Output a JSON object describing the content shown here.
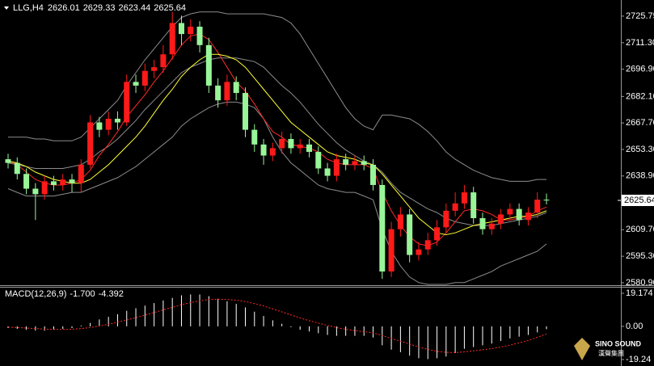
{
  "chart_data": [
    {
      "type": "candlestick",
      "symbol": "LLG,H4",
      "up_color": "#ff1a1a",
      "down_color": "#98f598",
      "open": [
        2648,
        2646,
        2640,
        2632,
        2629,
        2636,
        2634,
        2637,
        2635,
        2645,
        2668,
        2664,
        2670,
        2668,
        2690,
        2688,
        2696,
        2698,
        2705,
        2722,
        2716,
        2720,
        2710,
        2688,
        2680,
        2690,
        2684,
        2664,
        2656,
        2650,
        2654,
        2659,
        2654,
        2656,
        2652,
        2643,
        2639,
        2648,
        2645,
        2647,
        2645,
        2634,
        2587,
        2610,
        2618,
        2596,
        2599,
        2604,
        2611,
        2620,
        2624,
        2630,
        2616,
        2610,
        2613,
        2618,
        2621,
        2615,
        2619,
        2626.01
      ],
      "high": [
        2651,
        2649,
        2643,
        2635,
        2639,
        2639,
        2640,
        2640,
        2648,
        2672,
        2671,
        2674,
        2674,
        2694,
        2694,
        2700,
        2702,
        2710,
        2728,
        2726,
        2724,
        2723,
        2714,
        2692,
        2694,
        2693,
        2687,
        2667,
        2659,
        2657,
        2663,
        2662,
        2659,
        2659,
        2655,
        2646,
        2651,
        2651,
        2650,
        2650,
        2648,
        2637,
        2614,
        2622,
        2621,
        2603,
        2608,
        2615,
        2624,
        2630,
        2634,
        2633,
        2619,
        2616,
        2621,
        2624,
        2624,
        2622,
        2630,
        2629.33
      ],
      "low": [
        2643,
        2637,
        2629,
        2615,
        2626,
        2631,
        2631,
        2630,
        2630,
        2643,
        2660,
        2661,
        2664,
        2666,
        2684,
        2685,
        2692,
        2695,
        2702,
        2710,
        2712,
        2706,
        2684,
        2676,
        2677,
        2680,
        2660,
        2652,
        2645,
        2647,
        2651,
        2651,
        2651,
        2649,
        2640,
        2636,
        2636,
        2642,
        2642,
        2642,
        2631,
        2583,
        2584,
        2606,
        2592,
        2593,
        2596,
        2601,
        2608,
        2617,
        2621,
        2613,
        2607,
        2607,
        2610,
        2615,
        2612,
        2612,
        2616,
        2623.44
      ],
      "close": [
        2646,
        2640,
        2632,
        2629,
        2636,
        2634,
        2637,
        2635,
        2645,
        2668,
        2664,
        2670,
        2668,
        2690,
        2688,
        2696,
        2698,
        2705,
        2722,
        2716,
        2720,
        2710,
        2688,
        2680,
        2690,
        2684,
        2664,
        2656,
        2650,
        2654,
        2659,
        2654,
        2656,
        2652,
        2643,
        2639,
        2648,
        2645,
        2647,
        2645,
        2634,
        2587,
        2610,
        2618,
        2596,
        2599,
        2604,
        2611,
        2620,
        2624,
        2630,
        2616,
        2610,
        2613,
        2618,
        2621,
        2615,
        2619,
        2626.01,
        2625.64
      ],
      "lines": [
        {
          "color": "#8c8c8c",
          "values": [
            2660,
            2660,
            2660,
            2659,
            2659,
            2658,
            2658,
            2658,
            2660,
            2665,
            2670,
            2675,
            2680,
            2688,
            2695,
            2702,
            2708,
            2714,
            2720,
            2725,
            2727,
            2728,
            2728,
            2728,
            2727,
            2727,
            2727,
            2727,
            2727,
            2726,
            2725,
            2722,
            2716,
            2708,
            2700,
            2692,
            2684,
            2676,
            2670,
            2666,
            2664,
            2672,
            2672,
            2671,
            2670,
            2667,
            2663,
            2658,
            2652,
            2648,
            2645,
            2642,
            2640,
            2638,
            2637,
            2636,
            2636,
            2636,
            2637,
            2637
          ]
        },
        {
          "color": "#8c8c8c",
          "values": [
            2646,
            2645,
            2644,
            2643,
            2643,
            2643,
            2643,
            2644,
            2645,
            2648,
            2652,
            2655,
            2659,
            2664,
            2669,
            2675,
            2680,
            2685,
            2690,
            2695,
            2698,
            2700,
            2702,
            2703,
            2703,
            2703,
            2702,
            2701,
            2698,
            2693,
            2688,
            2684,
            2679,
            2673,
            2667,
            2662,
            2657,
            2653,
            2650,
            2647,
            2645,
            2641,
            2635,
            2630,
            2627,
            2624,
            2621,
            2619,
            2616,
            2614,
            2613,
            2612,
            2612,
            2612,
            2613,
            2614,
            2615,
            2616,
            2617,
            2619
          ]
        },
        {
          "color": "#8c8c8c",
          "values": [
            2632,
            2630,
            2628,
            2628,
            2628,
            2628,
            2629,
            2630,
            2630,
            2632,
            2634,
            2636,
            2638,
            2641,
            2644,
            2648,
            2652,
            2656,
            2660,
            2666,
            2670,
            2673,
            2676,
            2678,
            2679,
            2679,
            2678,
            2676,
            2670,
            2660,
            2652,
            2646,
            2642,
            2638,
            2634,
            2632,
            2631,
            2630,
            2630,
            2628,
            2626,
            2610,
            2598,
            2590,
            2584,
            2581,
            2580,
            2580,
            2580,
            2581,
            2581,
            2583,
            2585,
            2587,
            2590,
            2592,
            2594,
            2596,
            2598,
            2602
          ]
        },
        {
          "color": "#ff2a2a",
          "values": [
            2647,
            2645,
            2641,
            2637,
            2635,
            2634,
            2634,
            2635,
            2637,
            2642,
            2650,
            2656,
            2663,
            2671,
            2677,
            2683,
            2690,
            2696,
            2703,
            2710,
            2715,
            2716,
            2713,
            2706,
            2698,
            2690,
            2685,
            2678,
            2670,
            2663,
            2660,
            2656,
            2655,
            2654,
            2652,
            2648,
            2646,
            2645,
            2645,
            2645,
            2643,
            2630,
            2620,
            2612,
            2606,
            2602,
            2601,
            2603,
            2608,
            2614,
            2620,
            2621,
            2620,
            2618,
            2615,
            2615,
            2616,
            2617,
            2620,
            2622
          ]
        },
        {
          "color": "#ffff33",
          "values": [
            2647,
            2646,
            2644,
            2641,
            2639,
            2637,
            2636,
            2635,
            2635,
            2637,
            2641,
            2645,
            2650,
            2655,
            2660,
            2666,
            2673,
            2680,
            2686,
            2693,
            2698,
            2702,
            2705,
            2705,
            2704,
            2702,
            2698,
            2692,
            2686,
            2680,
            2674,
            2668,
            2664,
            2660,
            2656,
            2652,
            2650,
            2649,
            2648,
            2646,
            2645,
            2640,
            2634,
            2628,
            2622,
            2616,
            2612,
            2608,
            2607,
            2608,
            2610,
            2612,
            2613,
            2614,
            2615,
            2616,
            2617,
            2617,
            2618,
            2620
          ]
        }
      ],
      "ylim": [
        2580,
        2734.5
      ],
      "yticks": [
        2725.75,
        {
          "value": 2711.3,
          "label": "2711.30"
        },
        {
          "value": 2696.9,
          "label": "2696.90"
        },
        {
          "value": 2682.1,
          "label": "2682.10"
        },
        {
          "value": 2667.7,
          "label": "2667.70"
        },
        {
          "value": 2653.3,
          "label": "2653.30"
        },
        {
          "value": 2638.9,
          "label": "2638.90"
        },
        {
          "value": 2609.7,
          "label": "2609.70"
        },
        {
          "value": 2595.3,
          "label": "2595.30"
        },
        {
          "value": 2580.9,
          "label": "2580.90"
        }
      ]
    },
    {
      "type": "macd",
      "title": "MACD(12,26,9)",
      "legend_values": [
        {
          "value": -1.7,
          "label": "-1.700"
        },
        {
          "value": -4.392,
          "label": "-4.392"
        }
      ],
      "color": "#ffffff",
      "values": [
        -1,
        -1.5,
        -2,
        -2.5,
        -2.5,
        -2,
        -1.5,
        -1,
        0.5,
        2,
        4,
        5.5,
        7,
        9,
        10.5,
        12,
        13.5,
        15,
        16.5,
        18,
        18.5,
        18.5,
        17.5,
        16,
        14.5,
        13,
        11,
        8.5,
        6,
        3.5,
        1.5,
        -0.5,
        -2,
        -3,
        -4,
        -5,
        -5.5,
        -5.5,
        -5.5,
        -5.5,
        -6.5,
        -11,
        -13.5,
        -15,
        -17,
        -18.5,
        -19,
        -18.5,
        -17.5,
        -15.5,
        -13,
        -12,
        -11,
        -10,
        -8.5,
        -7,
        -6,
        -5,
        -3.5,
        -1.7
      ],
      "signal": {
        "color": "#ff2a2a",
        "values": [
          -0.5,
          -0.7,
          -1,
          -1.3,
          -1.6,
          -1.8,
          -1.8,
          -1.7,
          -1.3,
          -0.7,
          0.2,
          1.2,
          2.4,
          3.7,
          5,
          6.5,
          8,
          9.5,
          11,
          12.5,
          13.8,
          14.8,
          15.5,
          15.7,
          15.6,
          15.2,
          14.4,
          13.2,
          11.8,
          10.1,
          8.4,
          6.6,
          4.9,
          3.3,
          1.9,
          0.5,
          -0.7,
          -1.7,
          -2.5,
          -3.1,
          -3.8,
          -5.3,
          -7,
          -8.6,
          -10.3,
          -12,
          -13.4,
          -14.5,
          -15.1,
          -15.2,
          -14.8,
          -14.2,
          -13.6,
          -12.9,
          -12,
          -10.9,
          -9.6,
          -8.2,
          -6.3,
          -4.392
        ]
      },
      "ylim": [
        -23,
        22.45
      ],
      "yticks": [
        19.174,
        {
          "value": 0,
          "label": "0.00"
        },
        {
          "value": -19.24,
          "label": "-19.24"
        }
      ]
    }
  ],
  "watermark": {
    "brand": "SINO SOUND",
    "subtitle": "漢聲集團"
  }
}
